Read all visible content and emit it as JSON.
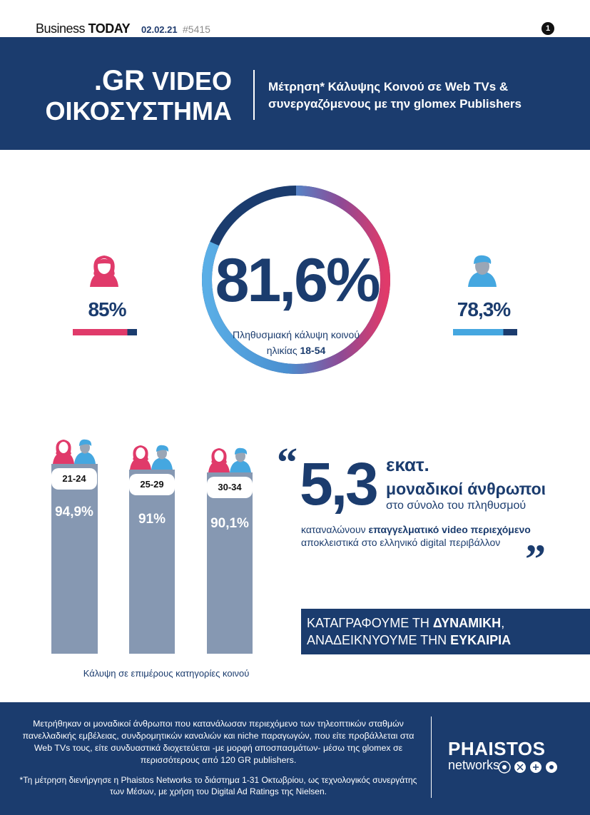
{
  "topbar": {
    "brand_business": "Business",
    "brand_today": "TODAY",
    "date": "02.02.21",
    "issue": "#5415",
    "page_number": "1"
  },
  "header": {
    "title_line1_gr": ".GR",
    "title_line1_rest": " VIDEO",
    "title_line2": "ΟΙΚΟΣΥΣΤΗΜΑ",
    "subtitle_line1": "Μέτρηση* Κάλυψης Κοινού σε Web TVs &",
    "subtitle_line2": "συνεργαζόμενους με την glomex Publishers"
  },
  "coverage": {
    "total_value": "81,6%",
    "total_fraction": 0.816,
    "caption_line1": "Πληθυσμιακή κάλυψη κοινού",
    "caption_prefix": "ηλικίας ",
    "caption_age": "18-54",
    "female_value": "85%",
    "female_fraction": 0.85,
    "male_value": "78,3%",
    "male_fraction": 0.783
  },
  "age_groups": {
    "caption": "Κάλυψη σε επιμέρους κατηγορίες κοινού",
    "items": [
      {
        "label": "21-24",
        "value": "94,9%"
      },
      {
        "label": "25-29",
        "value": "91%"
      },
      {
        "label": "30-34",
        "value": "90,1%"
      }
    ]
  },
  "quote": {
    "open": "“",
    "close": "”",
    "number": "5,3",
    "unit": "εκατ.",
    "line2": "μοναδικοί άνθρωποι",
    "line3": "στο σύνολο του πληθυσμού",
    "consume_prefix": "καταναλώνουν ",
    "consume_bold": "επαγγελματικό video περιεχόμενο",
    "consume_line2": "αποκλειστικά στο ελληνικό digital περιβάλλον"
  },
  "slogan": {
    "line1_prefix": "ΚΑΤΑΓΡΑΦΟΥΜΕ ΤΗ ",
    "line1_bold": "ΔΥΝΑΜΙΚΗ",
    "line1_suffix": ",",
    "line2_prefix": "ΑΝΑΔΕΙΚΝΥΟΥΜΕ ΤΗΝ ",
    "line2_bold": "ΕΥΚΑΙΡΙΑ"
  },
  "footer": {
    "main_text": "Μετρήθηκαν οι μοναδικοί άνθρωποι που κατανάλωσαν περιεχόμενο των τηλεοπτικών σταθμών πανελλαδικής εμβέλειας, συνδρομητικών καναλιών και niche παραγωγών, που είτε προβάλλεται στα Web TVs τους, είτε συνδυαστικά διοχετεύεται -με μορφή αποσπασμάτων- μέσω της glomex σε περισσότερους από 120 GR publishers.",
    "note_text": "*Τη μέτρηση διενήργησε η Phaistos Networks το διάστημα 1-31 Οκτωβρίου, ως τεχνολογικός συνεργάτης των Μέσων, με χρήση του Digital Ad Ratings της Nielsen.",
    "logo_name": "PHAISTOS",
    "logo_sub": "networks"
  },
  "colors": {
    "navy": "#1b3c6e",
    "pink": "#e03a6a",
    "light_blue": "#45a7e0",
    "bar_gray": "#8698b2"
  },
  "icons": [
    "woman-icon",
    "man-icon",
    "couple-icon"
  ]
}
